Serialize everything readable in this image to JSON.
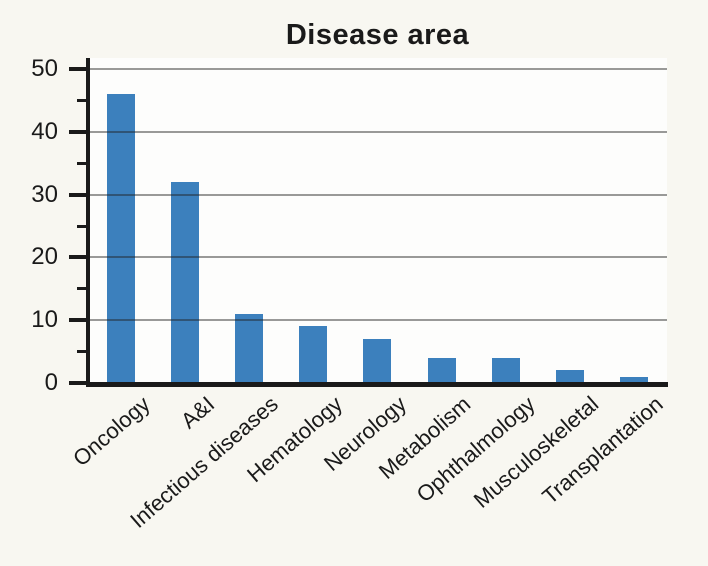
{
  "chart_data": {
    "type": "bar",
    "title": "Disease area",
    "categories": [
      "Oncology",
      "A&I",
      "Infectious diseases",
      "Hematology",
      "Neurology",
      "Metabolism",
      "Ophthalmology",
      "Musculoskeletal",
      "Transplantation"
    ],
    "values": [
      46,
      32,
      11,
      9,
      7,
      4,
      4,
      2,
      1
    ],
    "xlabel": "",
    "ylabel": "",
    "ylim": [
      0,
      50
    ],
    "yticks": [
      0,
      10,
      20,
      30,
      40,
      50
    ],
    "ytick_labels": [
      "0",
      "10",
      "20",
      "30",
      "40",
      "50"
    ],
    "yticks_minor": [
      5,
      15,
      25,
      35,
      45
    ],
    "grid": "horizontal-major",
    "legend": "none",
    "x_label_rotation_deg": 41,
    "colors": {
      "bar": "#3c80bd",
      "page_background": "#f8f7f1",
      "plot_background": "#fdfdfc",
      "gridline": "rgba(30,30,30,0.45)",
      "axis": "#1a1a1a",
      "text": "#1a1a1a"
    }
  }
}
